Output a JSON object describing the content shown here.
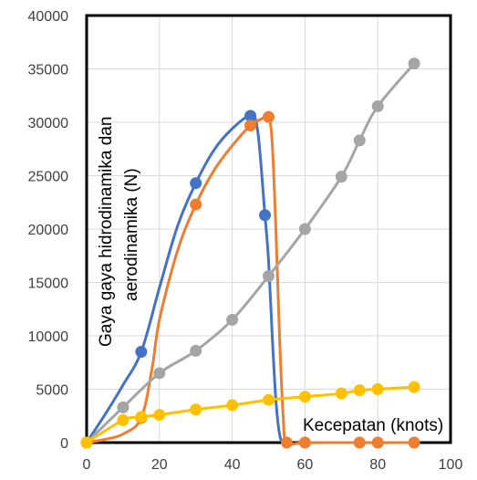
{
  "chart_data": {
    "type": "line",
    "xlabel": "Kecepatan (knots)",
    "ylabel_lines": [
      "Gaya gaya hidrodinamika dan",
      "aerodinamika (N)"
    ],
    "xlim": [
      0,
      100
    ],
    "ylim": [
      0,
      40000
    ],
    "x_ticks": [
      0,
      20,
      40,
      60,
      80,
      100
    ],
    "y_ticks": [
      0,
      5000,
      10000,
      15000,
      20000,
      25000,
      30000,
      35000,
      40000
    ],
    "x_tick_labels": [
      "0",
      "20",
      "40",
      "60",
      "80",
      "100"
    ],
    "y_tick_labels": [
      "0",
      "5000",
      "10000",
      "15000",
      "20000",
      "25000",
      "30000",
      "35000",
      "40000"
    ],
    "grid": true,
    "legend": "none",
    "series": [
      {
        "color": "#4472C4",
        "x": [
          0,
          15,
          30,
          45,
          49
        ],
        "y": [
          0,
          8500,
          24300,
          30600,
          21300
        ],
        "curve_x": [
          0,
          5,
          10,
          15,
          20,
          25,
          30,
          35,
          40,
          45,
          47,
          49,
          50,
          51,
          52,
          53,
          54,
          55
        ],
        "curve_y": [
          0,
          2600,
          5400,
          8500,
          14500,
          20300,
          24300,
          27400,
          29400,
          30600,
          29200,
          21300,
          17000,
          10000,
          4000,
          800,
          0,
          0
        ]
      },
      {
        "color": "#ED7D31",
        "x": [
          0,
          15,
          30,
          45,
          50,
          55,
          60,
          75,
          80,
          90
        ],
        "y": [
          0,
          2300,
          22300,
          29700,
          30500,
          0,
          0,
          0,
          0,
          0
        ],
        "curve_x": [
          0,
          5,
          10,
          15,
          18,
          20,
          25,
          30,
          35,
          40,
          45,
          48,
          50,
          51,
          52,
          53,
          54,
          55,
          60,
          75,
          80,
          90
        ],
        "curve_y": [
          0,
          300,
          800,
          2300,
          7000,
          11500,
          18000,
          22300,
          25500,
          27800,
          29700,
          30300,
          30500,
          28000,
          20000,
          10000,
          2500,
          0,
          0,
          0,
          0,
          0
        ]
      },
      {
        "color": "#A5A5A5",
        "x": [
          0,
          10,
          20,
          30,
          40,
          50,
          60,
          70,
          75,
          80,
          90
        ],
        "y": [
          0,
          3300,
          6500,
          8600,
          11500,
          15600,
          20000,
          24900,
          28300,
          31500,
          35500
        ],
        "curve_x": [
          0,
          10,
          20,
          30,
          40,
          50,
          60,
          70,
          75,
          80,
          90
        ],
        "curve_y": [
          0,
          3300,
          6500,
          8600,
          11500,
          15600,
          20000,
          24900,
          28300,
          31500,
          35500
        ]
      },
      {
        "color": "#FFC000",
        "x": [
          0,
          10,
          15,
          20,
          30,
          40,
          50,
          60,
          70,
          75,
          80,
          90
        ],
        "y": [
          0,
          2100,
          2400,
          2600,
          3100,
          3500,
          4000,
          4300,
          4600,
          4900,
          5000,
          5200
        ],
        "curve_x": [
          0,
          10,
          15,
          20,
          30,
          40,
          50,
          60,
          70,
          75,
          80,
          90
        ],
        "curve_y": [
          0,
          2100,
          2400,
          2600,
          3100,
          3500,
          4000,
          4300,
          4600,
          4900,
          5000,
          5200
        ]
      }
    ]
  }
}
